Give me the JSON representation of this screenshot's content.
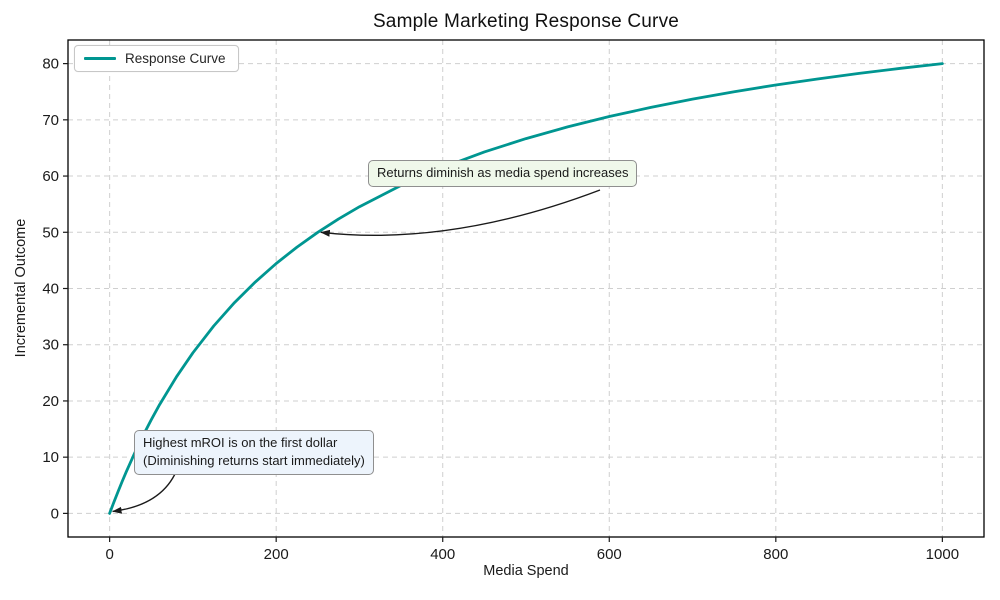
{
  "title": "Sample Marketing Response Curve",
  "chart_data": {
    "type": "line",
    "title": "Sample Marketing Response Curve",
    "xlabel": "Media Spend",
    "ylabel": "Incremental Outcome",
    "xlim": [
      -50,
      1050
    ],
    "ylim": [
      -4.2,
      84.2
    ],
    "x_ticks": [
      0,
      200,
      400,
      600,
      800,
      1000
    ],
    "y_ticks": [
      0,
      10,
      20,
      30,
      40,
      50,
      60,
      70,
      80
    ],
    "grid": true,
    "grid_style": "dashed",
    "grid_color": "#cfcfcf",
    "legend_position": "upper-left",
    "series": [
      {
        "name": "Response Curve",
        "color": "#009691",
        "x": [
          0,
          5,
          10,
          15,
          20,
          30,
          40,
          50,
          60,
          80,
          100,
          125,
          150,
          175,
          200,
          225,
          250,
          275,
          300,
          350,
          400,
          450,
          500,
          550,
          600,
          650,
          700,
          750,
          800,
          850,
          900,
          950,
          1000
        ],
        "y": [
          0,
          1.96,
          3.85,
          5.66,
          7.41,
          10.71,
          13.79,
          16.67,
          19.35,
          24.24,
          28.57,
          33.33,
          37.5,
          41.18,
          44.44,
          47.37,
          50,
          52.38,
          54.55,
          58.33,
          61.54,
          64.29,
          66.67,
          68.75,
          70.59,
          72.22,
          73.68,
          75,
          76.19,
          77.27,
          78.26,
          79.17,
          80
        ]
      }
    ],
    "annotations": [
      {
        "id": "diminishing-returns",
        "lines": [
          "Returns diminish as media spend increases"
        ],
        "target_xy": [
          250,
          50
        ],
        "box_fill": "#eff8ea",
        "border_color": "#8f8f8f"
      },
      {
        "id": "highest-mroi",
        "lines": [
          "Highest mROI is on the first dollar",
          "(Diminishing returns start immediately)"
        ],
        "target_xy": [
          0,
          0
        ],
        "box_fill": "#edf4fc",
        "border_color": "#8f8f8f"
      }
    ]
  },
  "legend": {
    "label": "Response Curve"
  },
  "colors": {
    "curve": "#009691",
    "grid": "#cfcfcf",
    "spine": "#000000",
    "annotation_green_fill": "#eff8ea",
    "annotation_blue_fill": "#edf4fc",
    "arrow": "#1a1a1a"
  }
}
